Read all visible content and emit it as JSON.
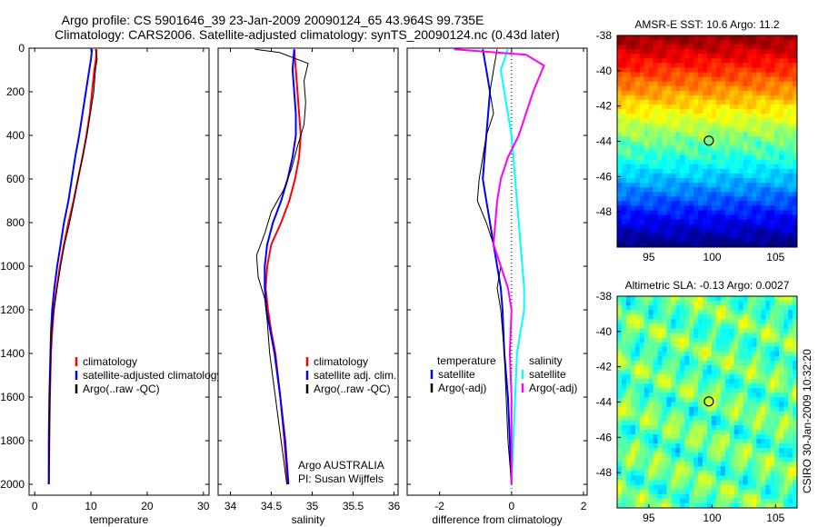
{
  "header": {
    "line1": "Argo profile: CS 5901646_39 23-Jan-2009 20090124_65 43.964S 99.735E",
    "line2": "Climatology: CARS2006. Satellite-adjusted climatology: synTS_20090124.nc (0.43d later)"
  },
  "side_stamp": "CSIRO 30-Jan-2009 10:32:20",
  "colors": {
    "climatology": "#ff0000",
    "satellite": "#0000ff",
    "argo": "#000000",
    "sat_salinity": "#00ffff",
    "argo_salinity_diff": "#ff00ff"
  },
  "chart_data": [
    {
      "id": "temperature",
      "type": "line",
      "xlabel": "temperature",
      "xlim": [
        -1,
        31
      ],
      "xticks": [
        0,
        10,
        20,
        30
      ],
      "ylim": [
        2050,
        0
      ],
      "yticks": [
        0,
        200,
        400,
        600,
        800,
        1000,
        1200,
        1400,
        1600,
        1800,
        2000
      ],
      "y_axis_labels": true,
      "legend": [
        "climatology",
        "satellite-adjusted climatology",
        "Argo(..raw -QC)"
      ],
      "series": [
        {
          "name": "climatology",
          "color": "#ff0000",
          "width": 2,
          "x": [
            11.0,
            10.9,
            10.6,
            10.2,
            9.8,
            9.2,
            8.5,
            7.7,
            6.9,
            6.0,
            5.2,
            4.5,
            3.9,
            3.4,
            3.1,
            2.9,
            2.7,
            2.6,
            2.5
          ],
          "y": [
            5,
            50,
            100,
            200,
            300,
            400,
            500,
            600,
            700,
            800,
            900,
            1000,
            1100,
            1200,
            1300,
            1400,
            1600,
            1800,
            2000
          ]
        },
        {
          "name": "satellite-adjusted climatology",
          "color": "#0000ff",
          "width": 2,
          "x": [
            10.2,
            10.0,
            9.7,
            9.1,
            8.5,
            7.9,
            7.2,
            6.6,
            6.0,
            5.2,
            4.6,
            4.0,
            3.5,
            3.1,
            2.9,
            2.8,
            2.6,
            2.5,
            2.5
          ],
          "y": [
            5,
            50,
            100,
            200,
            300,
            400,
            500,
            600,
            700,
            800,
            900,
            1000,
            1100,
            1200,
            1300,
            1400,
            1600,
            1800,
            2000
          ]
        },
        {
          "name": "Argo(..raw -QC)",
          "color": "#000000",
          "width": 1,
          "x": [
            10.8,
            11.1,
            10.8,
            10.5,
            9.9,
            9.3,
            8.5,
            7.7,
            7.0,
            6.2,
            5.3,
            4.6,
            4.0,
            3.4,
            3.0,
            2.8,
            2.7,
            2.6,
            2.5
          ],
          "y": [
            5,
            50,
            100,
            200,
            300,
            400,
            500,
            600,
            700,
            800,
            900,
            1000,
            1100,
            1200,
            1300,
            1400,
            1600,
            1800,
            2000
          ]
        }
      ]
    },
    {
      "id": "salinity",
      "type": "line",
      "xlabel": "salinity",
      "xlim": [
        33.85,
        36.05
      ],
      "xticks": [
        34,
        34.5,
        35,
        35.5,
        36
      ],
      "ylim": [
        2050,
        0
      ],
      "yticks": [
        0,
        200,
        400,
        600,
        800,
        1000,
        1200,
        1400,
        1600,
        1800,
        2000
      ],
      "y_axis_labels": false,
      "legend": [
        "climatology",
        "satellite adj. clim.",
        "Argo(..raw -QC)"
      ],
      "series": [
        {
          "name": "climatology",
          "color": "#ff0000",
          "width": 2,
          "x": [
            34.78,
            34.8,
            34.82,
            34.84,
            34.86,
            34.84,
            34.79,
            34.72,
            34.62,
            34.5,
            34.45,
            34.43,
            34.46,
            34.5,
            34.55,
            34.61,
            34.66,
            34.7
          ],
          "y": [
            5,
            100,
            200,
            300,
            400,
            500,
            600,
            700,
            800,
            900,
            1000,
            1100,
            1200,
            1300,
            1400,
            1600,
            1800,
            2000
          ]
        },
        {
          "name": "satellite adj. clim.",
          "color": "#0000ff",
          "width": 2,
          "x": [
            34.78,
            34.76,
            34.78,
            34.8,
            34.8,
            34.76,
            34.7,
            34.62,
            34.52,
            34.45,
            34.42,
            34.42,
            34.44,
            34.49,
            34.54,
            34.61,
            34.67,
            34.71
          ],
          "y": [
            5,
            100,
            200,
            300,
            400,
            500,
            600,
            700,
            800,
            900,
            1000,
            1100,
            1200,
            1300,
            1400,
            1600,
            1800,
            2000
          ]
        },
        {
          "name": "Argo(..raw -QC)",
          "color": "#000000",
          "width": 1,
          "x": [
            34.3,
            34.6,
            34.95,
            34.9,
            34.92,
            34.9,
            34.82,
            34.75,
            34.65,
            34.5,
            34.42,
            34.32,
            34.34,
            34.42,
            34.45,
            34.48,
            34.55,
            34.62,
            34.69
          ],
          "y": [
            5,
            20,
            70,
            150,
            250,
            350,
            450,
            550,
            650,
            750,
            850,
            950,
            1050,
            1150,
            1250,
            1400,
            1600,
            1800,
            2000
          ]
        }
      ]
    },
    {
      "id": "difference",
      "type": "line",
      "xlabel": "difference from climatology",
      "xlim": [
        -2.9,
        2.1
      ],
      "xticks": [
        -2,
        0,
        2
      ],
      "ylim": [
        2050,
        0
      ],
      "yticks": [
        0,
        200,
        400,
        600,
        800,
        1000,
        1200,
        1400,
        1600,
        1800,
        2000
      ],
      "y_axis_labels": false,
      "legend_left_title": "temperature",
      "legend_right_title": "salinity",
      "legend": [
        "satellite",
        "Argo(-adj)",
        "satellite",
        "Argo(-adj)"
      ],
      "series": [
        {
          "name": "satellite",
          "group": "temperature",
          "color": "#0000ff",
          "width": 2,
          "x": [
            -0.8,
            -0.7,
            -0.6,
            -0.65,
            -0.7,
            -0.75,
            -0.8,
            -0.7,
            -0.6,
            -0.5,
            -0.4,
            -0.3,
            -0.25,
            -0.2,
            -0.1,
            -0.05,
            0.0
          ],
          "y": [
            5,
            100,
            200,
            300,
            400,
            500,
            600,
            700,
            800,
            900,
            1000,
            1100,
            1200,
            1400,
            1600,
            1800,
            2000
          ]
        },
        {
          "name": "Argo(-adj)",
          "group": "temperature",
          "color": "#000000",
          "width": 1,
          "x": [
            -0.4,
            -0.5,
            -0.6,
            -0.5,
            -0.7,
            -0.8,
            -0.9,
            -0.95,
            -0.7,
            -0.5,
            -0.3,
            -0.4,
            -0.3,
            -0.2,
            -0.15,
            -0.1,
            0.0
          ],
          "y": [
            5,
            100,
            200,
            300,
            400,
            500,
            600,
            700,
            800,
            900,
            1000,
            1100,
            1200,
            1400,
            1600,
            1800,
            2000
          ]
        },
        {
          "name": "satellite",
          "group": "salinity",
          "color": "#00ffff",
          "width": 2,
          "x": [
            -0.1,
            -0.3,
            -0.2,
            -0.1,
            0.0,
            0.05,
            0.1,
            0.15,
            0.2,
            0.25,
            0.3,
            0.35,
            0.35,
            0.25,
            0.15,
            0.1,
            0.05,
            0.0
          ],
          "y": [
            5,
            100,
            200,
            300,
            400,
            500,
            600,
            700,
            800,
            900,
            1000,
            1100,
            1200,
            1300,
            1400,
            1600,
            1800,
            2000
          ]
        },
        {
          "name": "Argo(-adj)",
          "group": "salinity",
          "color": "#ff00ff",
          "width": 2,
          "x": [
            -1.6,
            0.4,
            0.9,
            0.6,
            0.4,
            0.2,
            -0.1,
            -0.3,
            -0.4,
            -0.45,
            -0.5,
            -0.3,
            -0.1,
            0.0,
            -0.05,
            0.0,
            0.0,
            0.0
          ],
          "y": [
            5,
            30,
            80,
            200,
            300,
            400,
            500,
            600,
            700,
            800,
            900,
            1000,
            1100,
            1200,
            1400,
            1600,
            1800,
            2000
          ]
        }
      ]
    },
    {
      "id": "sst_map",
      "type": "heatmap",
      "title": "AMSR-E SST: 10.6 Argo: 11.2",
      "xlim": [
        92.5,
        106.7
      ],
      "ylim": [
        -50,
        -38
      ],
      "xticks": [
        95,
        100,
        105
      ],
      "yticks": [
        -38,
        -40,
        -42,
        -44,
        -46,
        -48
      ],
      "marker": {
        "lon": 99.735,
        "lat": -43.964
      }
    },
    {
      "id": "sla_map",
      "type": "heatmap",
      "title": "Altimetric SLA: -0.13 Argo: 0.0027",
      "xlim": [
        92.5,
        106.7
      ],
      "ylim": [
        -50,
        -38
      ],
      "xticks": [
        95,
        100,
        105
      ],
      "yticks": [
        -38,
        -40,
        -42,
        -44,
        -46,
        -48
      ],
      "marker": {
        "lon": 99.735,
        "lat": -43.964
      }
    }
  ],
  "annotation": {
    "line1": "Argo AUSTRALIA",
    "line2": "PI: Susan Wijffels"
  }
}
